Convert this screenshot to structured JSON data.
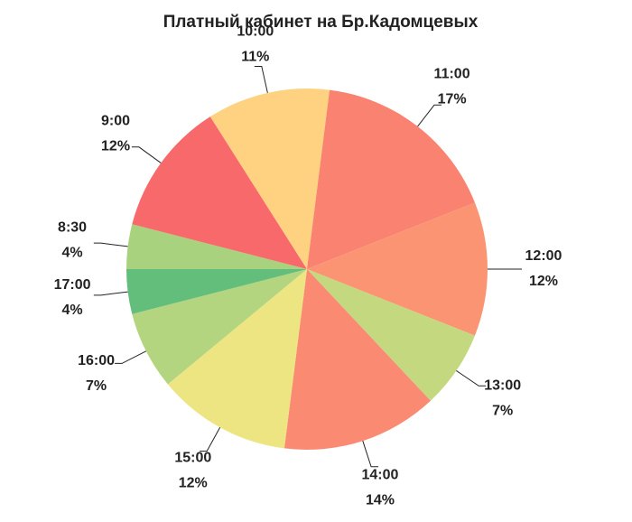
{
  "chart_data": {
    "type": "pie",
    "title": "Платный кабинет на Бр.Кадомцевых",
    "categories": [
      "8:30",
      "9:00",
      "10:00",
      "11:00",
      "12:00",
      "13:00",
      "14:00",
      "15:00",
      "16:00",
      "17:00"
    ],
    "values": [
      4,
      12,
      11,
      17,
      12,
      7,
      14,
      12,
      7,
      4
    ],
    "value_labels": [
      "4%",
      "12%",
      "11%",
      "17%",
      "12%",
      "7%",
      "14%",
      "12%",
      "7%",
      "4%"
    ],
    "colors": [
      "#a9d27f",
      "#f8696b",
      "#fed280",
      "#f98370",
      "#fb9473",
      "#c4d97f",
      "#fa8a72",
      "#ede582",
      "#b3d57f",
      "#63be7b"
    ]
  }
}
